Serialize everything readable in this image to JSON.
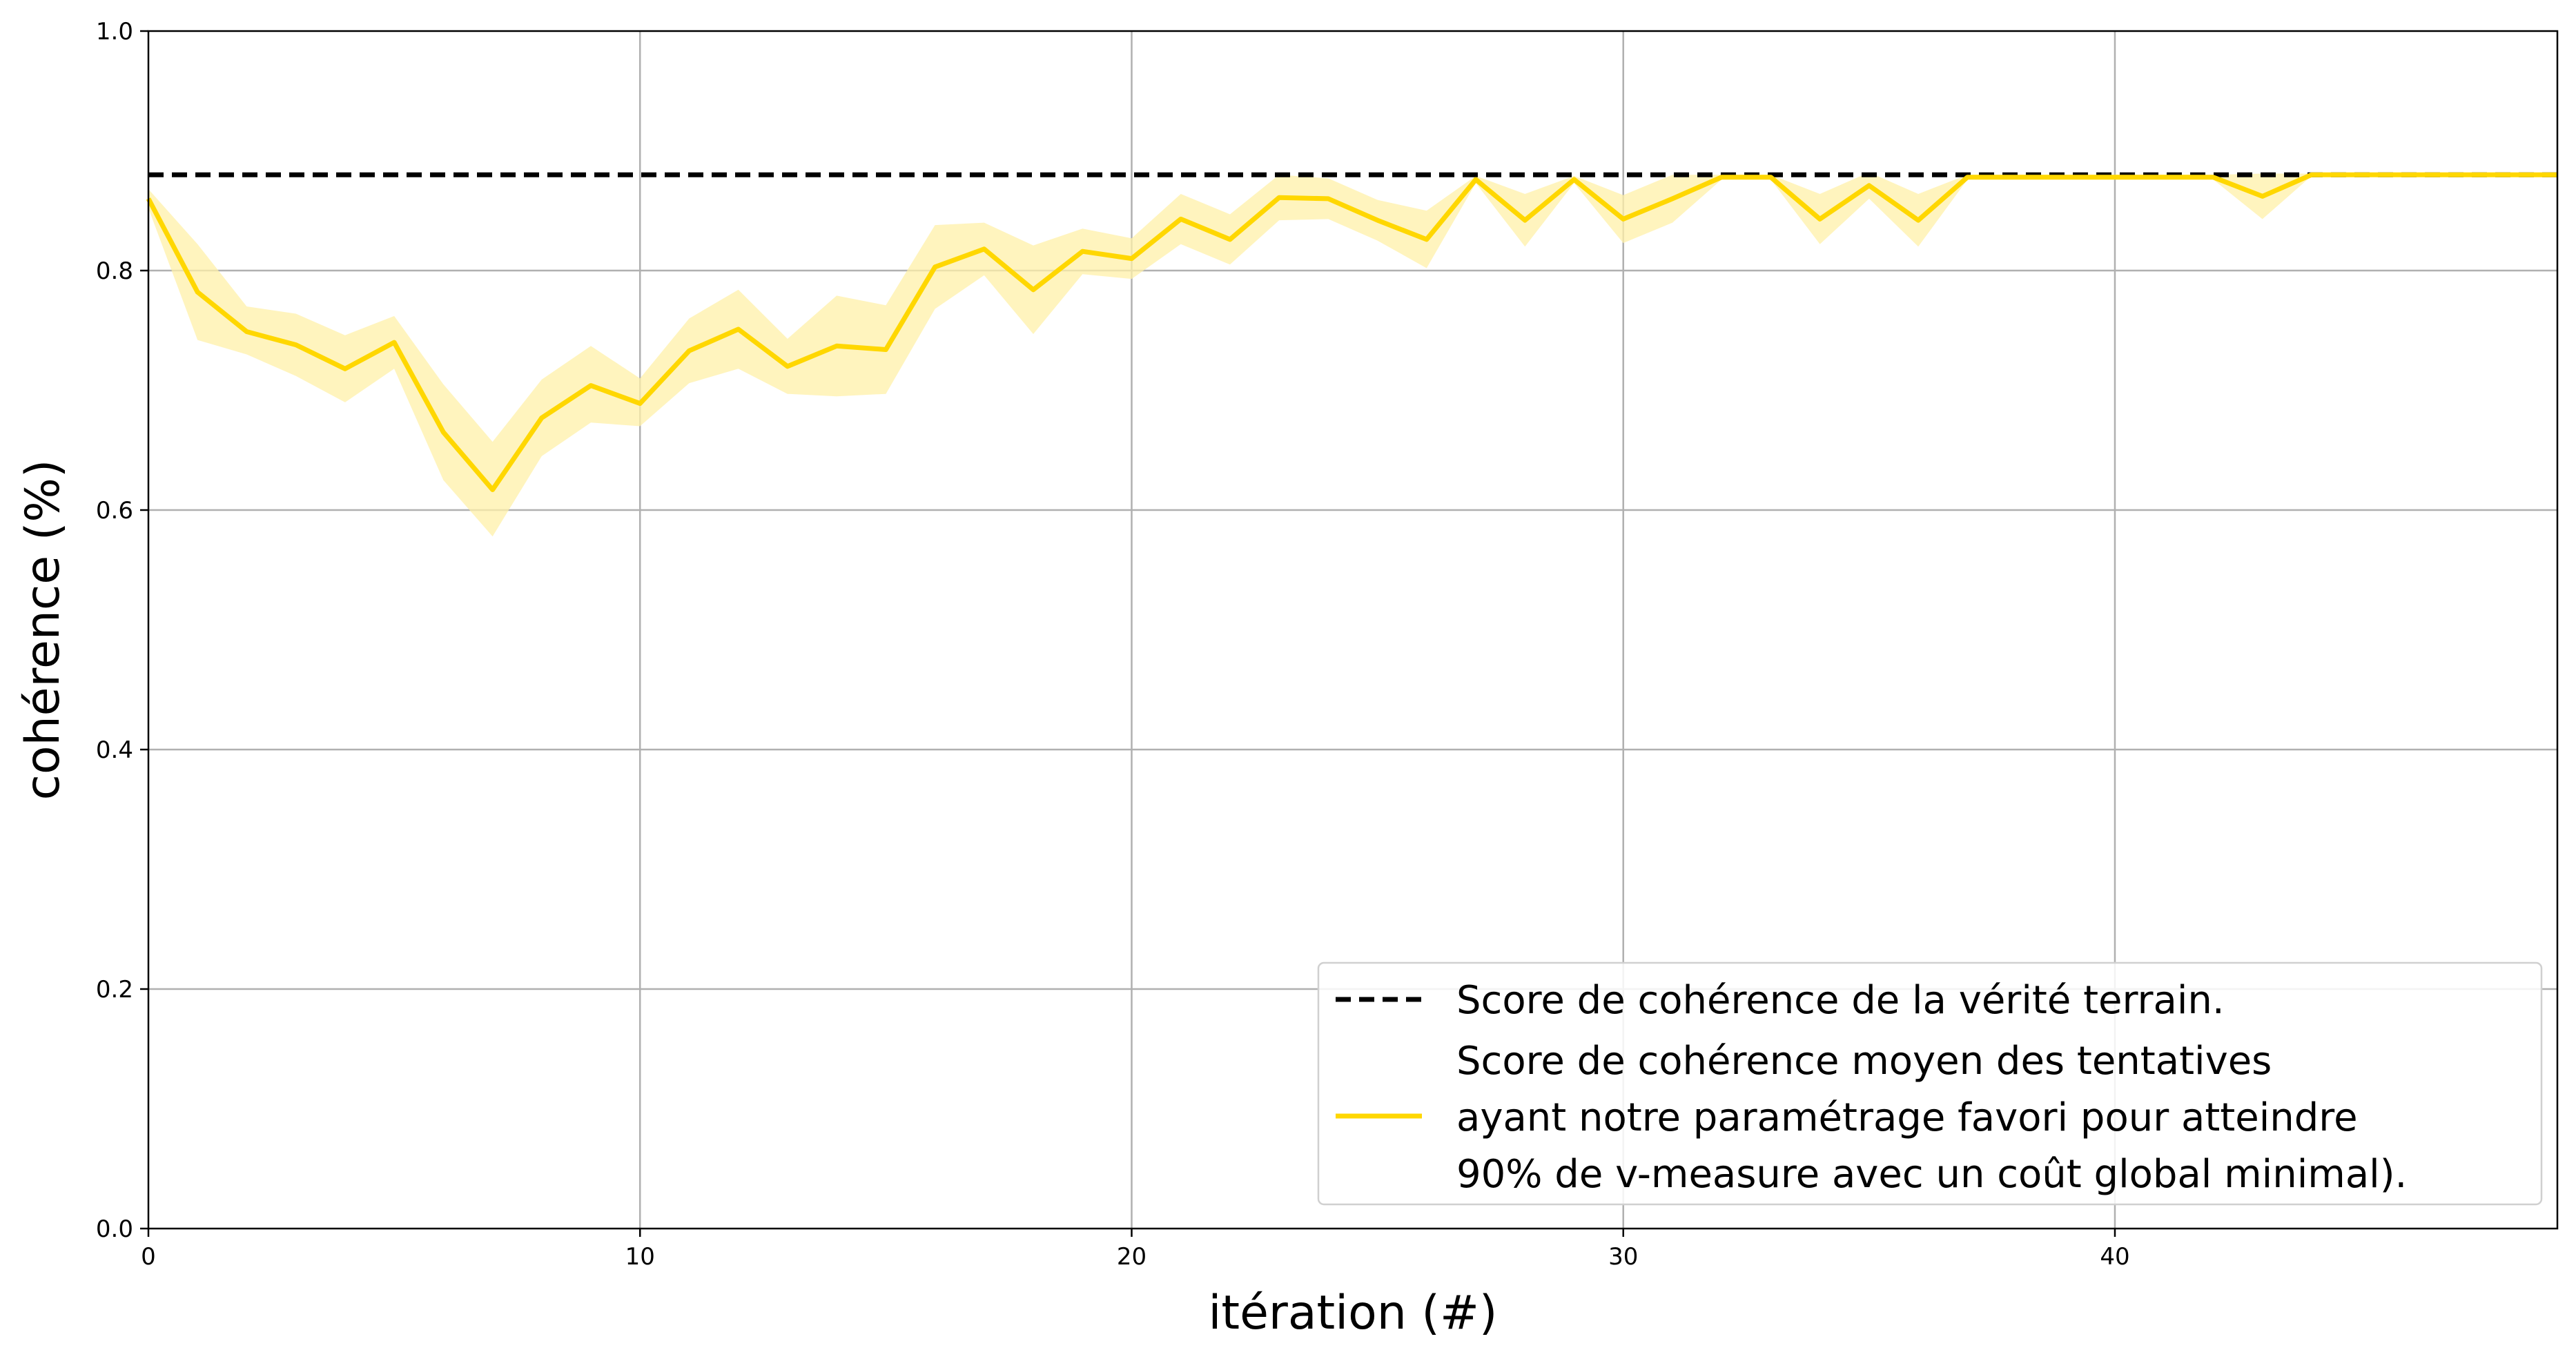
{
  "chart_data": {
    "type": "line",
    "xlabel": "itération (#)",
    "ylabel": "cohérence (%)",
    "xlim": [
      0,
      49
    ],
    "ylim": [
      0.0,
      1.0
    ],
    "xticks": [
      0,
      10,
      20,
      30,
      40
    ],
    "yticks": [
      0.0,
      0.2,
      0.4,
      0.6,
      0.8,
      1.0
    ],
    "xtick_labels": [
      "0",
      "10",
      "20",
      "30",
      "40"
    ],
    "ytick_labels": [
      "0.0",
      "0.2",
      "0.4",
      "0.6",
      "0.8",
      "1.0"
    ],
    "grid": true,
    "legend_position": "lower-right",
    "reference": {
      "name": "Score de cohérence de la vérité terrain.",
      "value": 0.88,
      "style": "dashed",
      "color": "#000000"
    },
    "series": [
      {
        "name": "Score de cohérence moyen des tentatives ayant notre paramétrage favori pour atteindre 90% de v-measure avec un coût global minimal).",
        "name_lines": [
          "Score de cohérence moyen des tentatives",
          "ayant notre paramétrage favori pour atteindre",
          "90% de v-measure avec un coût global minimal)."
        ],
        "color": "#FFD700",
        "band_color": "#FFF0A8",
        "x": [
          0,
          1,
          2,
          3,
          4,
          5,
          6,
          7,
          8,
          9,
          10,
          11,
          12,
          13,
          14,
          15,
          16,
          17,
          18,
          19,
          20,
          21,
          22,
          23,
          24,
          25,
          26,
          27,
          28,
          29,
          30,
          31,
          32,
          33,
          34,
          35,
          36,
          37,
          38,
          39,
          40,
          41,
          42,
          43,
          44,
          45,
          46,
          47,
          48,
          49
        ],
        "y": [
          0.86,
          0.782,
          0.749,
          0.738,
          0.718,
          0.74,
          0.665,
          0.617,
          0.677,
          0.704,
          0.689,
          0.733,
          0.751,
          0.72,
          0.737,
          0.734,
          0.803,
          0.818,
          0.784,
          0.816,
          0.81,
          0.843,
          0.826,
          0.861,
          0.86,
          0.842,
          0.826,
          0.876,
          0.842,
          0.876,
          0.843,
          0.86,
          0.878,
          0.878,
          0.843,
          0.871,
          0.842,
          0.878,
          0.878,
          0.878,
          0.878,
          0.878,
          0.878,
          0.862,
          0.88,
          0.88,
          0.88,
          0.88,
          0.88,
          0.88
        ],
        "lower": [
          0.852,
          0.742,
          0.73,
          0.712,
          0.69,
          0.718,
          0.625,
          0.578,
          0.645,
          0.673,
          0.67,
          0.706,
          0.718,
          0.697,
          0.695,
          0.697,
          0.768,
          0.796,
          0.747,
          0.797,
          0.793,
          0.822,
          0.805,
          0.842,
          0.843,
          0.825,
          0.802,
          0.873,
          0.82,
          0.873,
          0.823,
          0.84,
          0.876,
          0.876,
          0.822,
          0.86,
          0.82,
          0.876,
          0.876,
          0.876,
          0.876,
          0.876,
          0.876,
          0.843,
          0.879,
          0.879,
          0.879,
          0.879,
          0.879,
          0.879
        ],
        "upper": [
          0.868,
          0.822,
          0.77,
          0.764,
          0.746,
          0.762,
          0.705,
          0.657,
          0.709,
          0.737,
          0.71,
          0.76,
          0.784,
          0.743,
          0.779,
          0.771,
          0.838,
          0.84,
          0.821,
          0.835,
          0.827,
          0.864,
          0.847,
          0.88,
          0.877,
          0.859,
          0.85,
          0.879,
          0.864,
          0.879,
          0.863,
          0.88,
          0.88,
          0.88,
          0.864,
          0.882,
          0.864,
          0.88,
          0.88,
          0.88,
          0.88,
          0.88,
          0.88,
          0.881,
          0.881,
          0.881,
          0.881,
          0.881,
          0.881,
          0.881
        ]
      }
    ]
  }
}
